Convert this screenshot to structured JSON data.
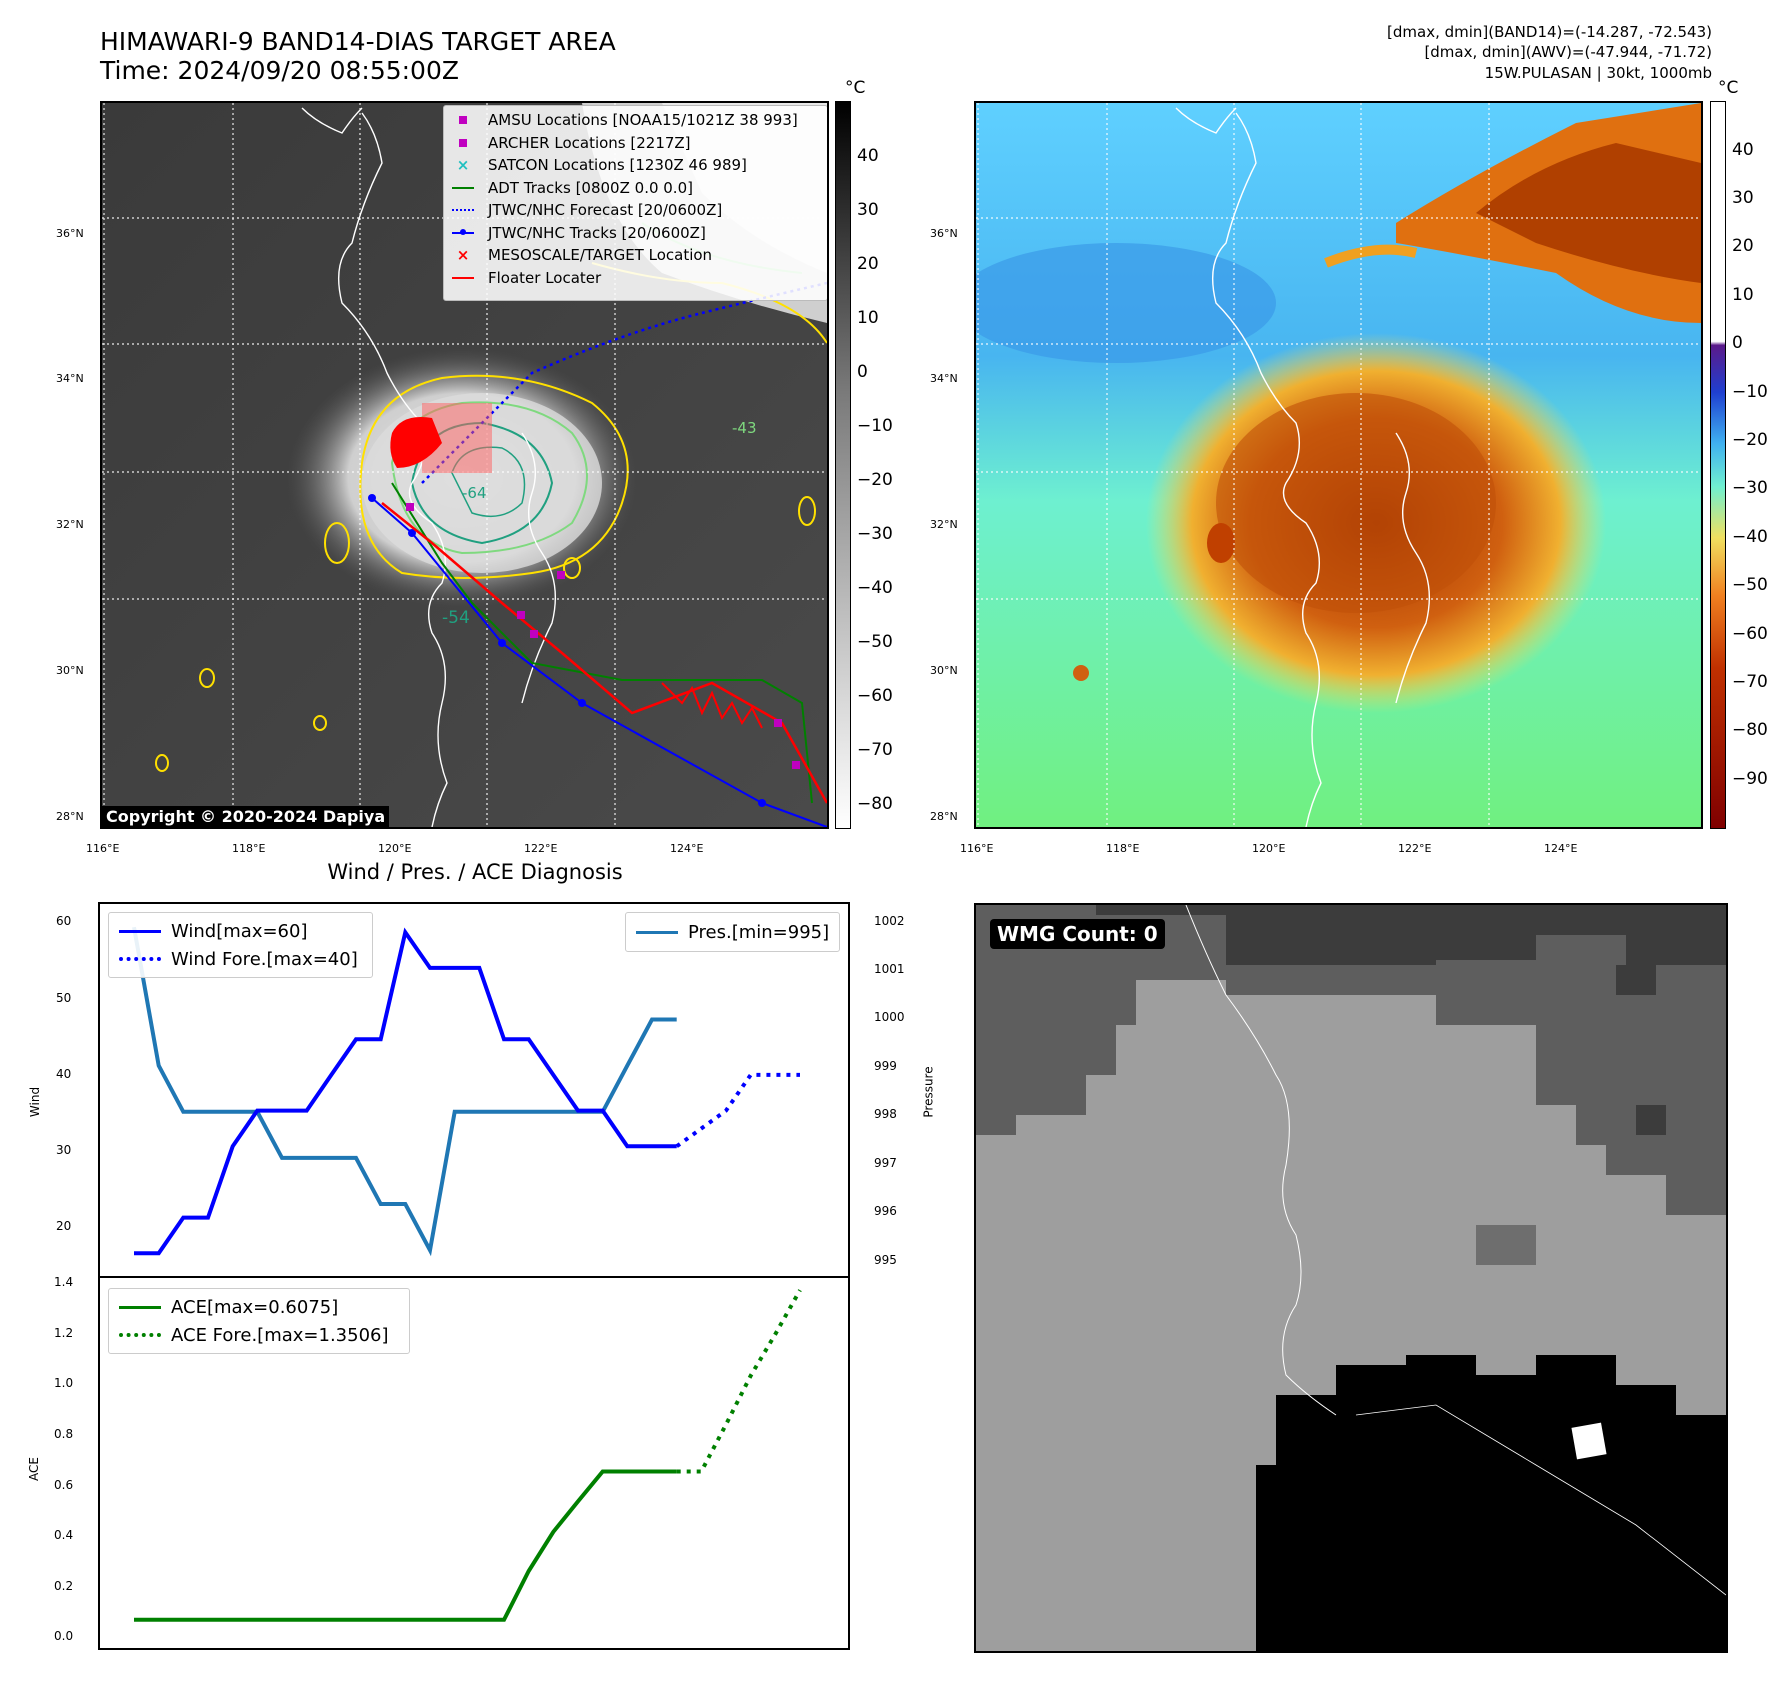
{
  "header": {
    "title_line1": "HIMAWARI-9 BAND14-DIAS TARGET AREA",
    "title_line2": "Time: 2024/09/20 08:55:00Z",
    "info_line1": "[dmax, dmin](BAND14)=(-14.287, -72.543)",
    "info_line2": "[dmax, dmin](AWV)=(-47.944, -71.72)",
    "info_line3": "15W.PULASAN | 30kt, 1000mb"
  },
  "maps": {
    "lat_labels": [
      "36°N",
      "34°N",
      "32°N",
      "30°N",
      "28°N"
    ],
    "lon_labels": [
      "116°E",
      "118°E",
      "120°E",
      "122°E",
      "124°E"
    ],
    "copyright": "Copyright © 2020-2024 Dapiya",
    "contour_labels": [
      "-54",
      "-64",
      "-43"
    ],
    "colorbar1": {
      "unit": "°C",
      "ticks": [
        "40",
        "30",
        "20",
        "10",
        "0",
        "−10",
        "−20",
        "−30",
        "−40",
        "−50",
        "−60",
        "−70",
        "−80"
      ]
    },
    "colorbar2": {
      "unit": "°C",
      "ticks": [
        "40",
        "30",
        "20",
        "10",
        "0",
        "−10",
        "−20",
        "−30",
        "−40",
        "−50",
        "−60",
        "−70",
        "−80",
        "−90"
      ]
    },
    "legend": [
      {
        "label": "AMSU Locations [NOAA15/1021Z 38 993]",
        "symbol": "square",
        "color": "#c000c0"
      },
      {
        "label": "ARCHER Locations [2217Z]",
        "symbol": "square",
        "color": "#c000c0"
      },
      {
        "label": "SATCON Locations [1230Z 46 989]",
        "symbol": "x",
        "color": "#20c0c0"
      },
      {
        "label": "ADT Tracks [0800Z 0.0 0.0]",
        "symbol": "line",
        "color": "#008000"
      },
      {
        "label": "JTWC/NHC Forecast [20/0600Z]",
        "symbol": "dotted",
        "color": "#0000ff"
      },
      {
        "label": "JTWC/NHC Tracks [20/0600Z]",
        "symbol": "line-dot",
        "color": "#0000ff"
      },
      {
        "label": "MESOSCALE/TARGET Location",
        "symbol": "x",
        "color": "#ff0000"
      },
      {
        "label": "Floater Locater",
        "symbol": "line",
        "color": "#ff0000"
      }
    ]
  },
  "wmg": {
    "label": "WMG Count: 0"
  },
  "diagnosis": {
    "title": "Wind / Pres. / ACE Diagnosis",
    "wind_ylabel": "Wind",
    "pres_ylabel": "Pressure",
    "ace_ylabel": "ACE",
    "wind_ticks": [
      "60",
      "50",
      "40",
      "30",
      "20"
    ],
    "pres_ticks": [
      "1002",
      "1001",
      "1000",
      "999",
      "998",
      "997",
      "996",
      "995"
    ],
    "ace_ticks": [
      "1.4",
      "1.2",
      "1.0",
      "0.8",
      "0.6",
      "0.4",
      "0.2",
      "0.0"
    ],
    "legend_wind": "Wind[max=60]",
    "legend_wind_fore": "Wind Fore.[max=40]",
    "legend_pres": "Pres.[min=995]",
    "legend_ace": "ACE[max=0.6075]",
    "legend_ace_fore": "ACE Fore.[max=1.3506]",
    "colors": {
      "wind": "#0000ff",
      "pres": "#1f77b4",
      "ace": "#008000"
    }
  },
  "chart_data": [
    {
      "type": "line",
      "title": "Wind / Pres. / ACE Diagnosis",
      "ylabel": "Wind",
      "ylim": [
        13.5,
        62
      ],
      "series": [
        {
          "name": "Wind[max=60]",
          "x": [
            0,
            1,
            2,
            3,
            4,
            5,
            6,
            7,
            8,
            9,
            10,
            11,
            12,
            13,
            14,
            15,
            16,
            17,
            18,
            19,
            20,
            21,
            22
          ],
          "values": [
            15,
            15,
            20,
            20,
            30,
            35,
            35,
            35,
            40,
            45,
            45,
            60,
            55,
            55,
            55,
            45,
            45,
            40,
            35,
            35,
            30,
            30,
            30
          ]
        },
        {
          "name": "Wind Fore.[max=40]",
          "x": [
            22,
            23,
            24,
            25,
            26,
            27
          ],
          "values": [
            30,
            32.5,
            35,
            40,
            40,
            40
          ]
        }
      ]
    },
    {
      "type": "line",
      "ylabel": "Pressure",
      "ylim": [
        994.7,
        1002.2
      ],
      "series": [
        {
          "name": "Pres.[min=995]",
          "x": [
            0,
            1,
            2,
            3,
            4,
            5,
            6,
            7,
            8,
            9,
            10,
            11,
            12,
            13,
            14,
            15,
            16,
            17,
            18,
            19,
            20,
            21,
            22
          ],
          "values": [
            1002,
            999.0,
            998,
            998,
            998,
            998,
            997,
            997,
            997,
            997,
            996,
            996,
            995,
            998,
            998,
            998,
            998,
            998,
            998,
            998,
            999,
            1000,
            1000
          ]
        }
      ]
    },
    {
      "type": "line",
      "ylabel": "ACE",
      "ylim": [
        -0.05,
        1.4
      ],
      "series": [
        {
          "name": "ACE[max=0.6075]",
          "x": [
            0,
            1,
            2,
            3,
            4,
            5,
            6,
            7,
            8,
            9,
            10,
            11,
            12,
            13,
            14,
            15,
            16,
            17,
            18,
            19,
            20,
            21,
            22
          ],
          "values": [
            0,
            0,
            0,
            0,
            0,
            0,
            0,
            0,
            0,
            0,
            0,
            0,
            0,
            0,
            0,
            0,
            0.2,
            0.36,
            0.485,
            0.6075,
            0.6075,
            0.6075,
            0.6075
          ]
        },
        {
          "name": "ACE Fore.[max=1.3506]",
          "x": [
            22,
            23,
            24,
            25,
            26,
            27
          ],
          "values": [
            0.6075,
            0.6075,
            0.8,
            1.0,
            1.17,
            1.3506
          ]
        }
      ]
    }
  ]
}
